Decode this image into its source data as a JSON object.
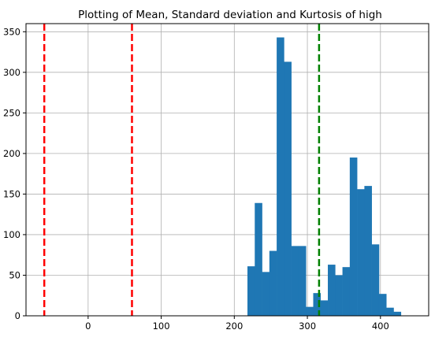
{
  "chart_data": {
    "type": "bar",
    "title": "Plotting of Mean, Standard deviation and Kurtosis of high",
    "xlabel": "",
    "ylabel": "",
    "xlim": [
      -85,
      466
    ],
    "ylim": [
      0,
      360
    ],
    "x_ticks": [
      0,
      100,
      200,
      300,
      400
    ],
    "y_ticks": [
      0,
      50,
      100,
      150,
      200,
      250,
      300,
      350
    ],
    "grid": true,
    "bar_color": "#1f77b4",
    "bins": [
      {
        "x0": 218,
        "x1": 228,
        "count": 61
      },
      {
        "x0": 228,
        "x1": 238,
        "count": 139
      },
      {
        "x0": 238,
        "x1": 248,
        "count": 54
      },
      {
        "x0": 248,
        "x1": 258,
        "count": 80
      },
      {
        "x0": 258,
        "x1": 268,
        "count": 343
      },
      {
        "x0": 268,
        "x1": 278,
        "count": 313
      },
      {
        "x0": 278,
        "x1": 288,
        "count": 86
      },
      {
        "x0": 288,
        "x1": 298,
        "count": 86
      },
      {
        "x0": 298,
        "x1": 308,
        "count": 11
      },
      {
        "x0": 308,
        "x1": 318,
        "count": 28
      },
      {
        "x0": 318,
        "x1": 328,
        "count": 19
      },
      {
        "x0": 328,
        "x1": 338,
        "count": 63
      },
      {
        "x0": 338,
        "x1": 348,
        "count": 50
      },
      {
        "x0": 348,
        "x1": 358,
        "count": 60
      },
      {
        "x0": 358,
        "x1": 368,
        "count": 195
      },
      {
        "x0": 368,
        "x1": 378,
        "count": 156
      },
      {
        "x0": 378,
        "x1": 388,
        "count": 160
      },
      {
        "x0": 388,
        "x1": 398,
        "count": 88
      },
      {
        "x0": 398,
        "x1": 408,
        "count": 27
      },
      {
        "x0": 408,
        "x1": 418,
        "count": 10
      },
      {
        "x0": 418,
        "x1": 428,
        "count": 5
      }
    ],
    "vlines": [
      {
        "x": -60,
        "color": "#ff0000",
        "style": "dashed"
      },
      {
        "x": 60,
        "color": "#ff0000",
        "style": "dashed"
      },
      {
        "x": 316,
        "color": "#008000",
        "style": "dashed"
      }
    ]
  }
}
